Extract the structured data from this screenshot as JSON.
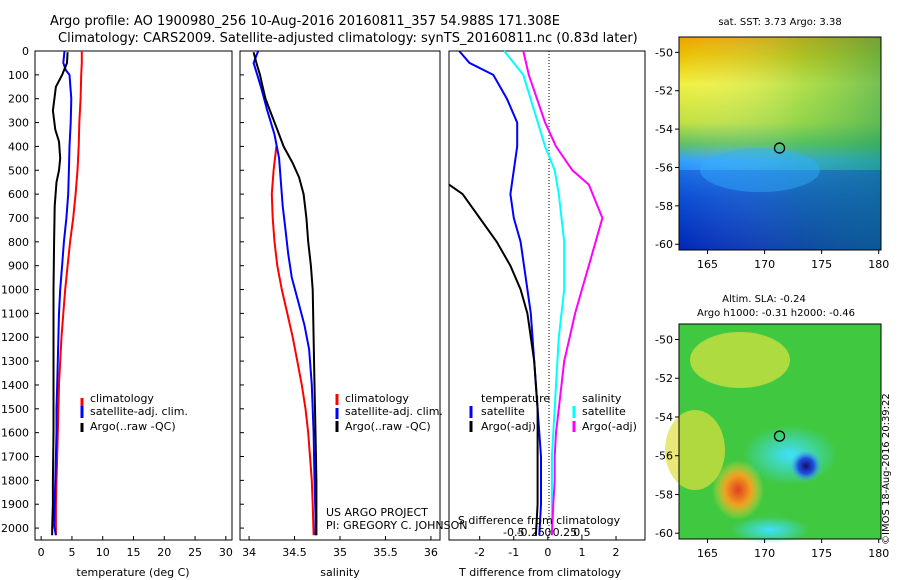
{
  "header": {
    "line1": "Argo profile: AO 1900980_256 10-Aug-2016 20160811_357 54.988S 171.308E",
    "line2": "Climatology: CARS2009. Satellite-adjusted climatology: synTS_20160811.nc (0.83d later)"
  },
  "colors": {
    "climatology": "#ff0000",
    "satellite": "#0000ff",
    "argo": "#000000",
    "sat_salinity": "#00ffff",
    "argo_adj_salinity": "#ff00ff"
  },
  "chart_data": [
    {
      "id": "temp",
      "type": "line",
      "xlabel": "temperature (deg C)",
      "ylabel": "",
      "xlim": [
        -1,
        31
      ],
      "ylim": [
        2050,
        0
      ],
      "xticks": [
        0,
        5,
        10,
        15,
        20,
        25,
        30
      ],
      "yticks": [
        0,
        100,
        200,
        300,
        400,
        500,
        600,
        700,
        800,
        900,
        1000,
        1100,
        1200,
        1300,
        1400,
        1500,
        1600,
        1700,
        1800,
        1900,
        2000
      ],
      "legend": {
        "position": "lower-right",
        "entries": [
          "climatology",
          "satellite-adj. clim.",
          "Argo(..raw -QC)"
        ]
      },
      "series": [
        {
          "name": "climatology",
          "color": "#ff0000",
          "points": [
            [
              6.6,
              0
            ],
            [
              6.6,
              50
            ],
            [
              6.5,
              100
            ],
            [
              6.4,
              200
            ],
            [
              6.2,
              300
            ],
            [
              6.1,
              400
            ],
            [
              5.9,
              500
            ],
            [
              5.6,
              600
            ],
            [
              5.2,
              700
            ],
            [
              4.7,
              800
            ],
            [
              4.3,
              900
            ],
            [
              3.9,
              1000
            ],
            [
              3.6,
              1100
            ],
            [
              3.3,
              1200
            ],
            [
              3.1,
              1300
            ],
            [
              2.9,
              1400
            ],
            [
              2.8,
              1500
            ],
            [
              2.7,
              1600
            ],
            [
              2.6,
              1700
            ],
            [
              2.5,
              1800
            ],
            [
              2.4,
              1900
            ],
            [
              2.4,
              2030
            ]
          ]
        },
        {
          "name": "satellite-adj. clim.",
          "color": "#0000ff",
          "points": [
            [
              3.8,
              0
            ],
            [
              3.6,
              50
            ],
            [
              4.0,
              80
            ],
            [
              4.6,
              100
            ],
            [
              4.9,
              200
            ],
            [
              4.8,
              300
            ],
            [
              4.6,
              400
            ],
            [
              4.5,
              500
            ],
            [
              4.4,
              600
            ],
            [
              4.1,
              700
            ],
            [
              3.7,
              800
            ],
            [
              3.4,
              900
            ],
            [
              3.1,
              1000
            ],
            [
              2.9,
              1100
            ],
            [
              2.8,
              1200
            ],
            [
              2.7,
              1300
            ],
            [
              2.6,
              1400
            ],
            [
              2.5,
              1500
            ],
            [
              2.5,
              1600
            ],
            [
              2.4,
              1700
            ],
            [
              2.3,
              1800
            ],
            [
              2.2,
              1900
            ],
            [
              2.1,
              1990
            ],
            [
              2.4,
              2030
            ]
          ]
        },
        {
          "name": "Argo(..raw -QC)",
          "color": "#000000",
          "points": [
            [
              4.3,
              5
            ],
            [
              4.2,
              50
            ],
            [
              3.4,
              100
            ],
            [
              2.4,
              150
            ],
            [
              1.9,
              250
            ],
            [
              2.3,
              330
            ],
            [
              2.9,
              380
            ],
            [
              3.1,
              450
            ],
            [
              2.9,
              500
            ],
            [
              2.5,
              550
            ],
            [
              2.2,
              650
            ],
            [
              2.1,
              800
            ],
            [
              2.0,
              1000
            ],
            [
              2.0,
              1300
            ],
            [
              2.0,
              1600
            ],
            [
              1.9,
              1800
            ],
            [
              1.9,
              1900
            ],
            [
              1.8,
              2000
            ],
            [
              1.8,
              2030
            ]
          ]
        }
      ]
    },
    {
      "id": "salt",
      "type": "line",
      "xlabel": "salinity",
      "ylabel": "",
      "xlim": [
        33.9,
        36.1
      ],
      "ylim": [
        2050,
        0
      ],
      "xticks": [
        34,
        34.5,
        35,
        35.5,
        36
      ],
      "xticklabels": [
        "34",
        "34.5",
        "35",
        "35.5",
        "36"
      ],
      "legend": {
        "position": "lower-right",
        "entries": [
          "climatology",
          "satellite-adj. clim.",
          "Argo(..raw -QC)"
        ]
      },
      "annotations": [
        "US ARGO PROJECT",
        "PI: GREGORY C. JOHNSON"
      ],
      "series": [
        {
          "name": "climatology",
          "color": "#ff0000",
          "points": [
            [
              34.3,
              400
            ],
            [
              34.27,
              500
            ],
            [
              34.25,
              600
            ],
            [
              34.26,
              700
            ],
            [
              34.28,
              800
            ],
            [
              34.31,
              900
            ],
            [
              34.36,
              1000
            ],
            [
              34.42,
              1100
            ],
            [
              34.48,
              1200
            ],
            [
              34.53,
              1300
            ],
            [
              34.58,
              1400
            ],
            [
              34.62,
              1500
            ],
            [
              34.65,
              1600
            ],
            [
              34.67,
              1700
            ],
            [
              34.69,
              1800
            ],
            [
              34.7,
              1900
            ],
            [
              34.71,
              2030
            ]
          ]
        },
        {
          "name": "satellite-adj. clim.",
          "color": "#0000ff",
          "points": [
            [
              34.1,
              0
            ],
            [
              34.05,
              50
            ],
            [
              34.09,
              100
            ],
            [
              34.13,
              150
            ],
            [
              34.2,
              250
            ],
            [
              34.28,
              350
            ],
            [
              34.33,
              450
            ],
            [
              34.35,
              550
            ],
            [
              34.37,
              650
            ],
            [
              34.4,
              750
            ],
            [
              34.43,
              850
            ],
            [
              34.47,
              950
            ],
            [
              34.54,
              1050
            ],
            [
              34.61,
              1150
            ],
            [
              34.66,
              1250
            ],
            [
              34.69,
              1400
            ],
            [
              34.71,
              1600
            ],
            [
              34.72,
              1800
            ],
            [
              34.73,
              1950
            ],
            [
              34.73,
              2030
            ]
          ]
        },
        {
          "name": "Argo(..raw -QC)",
          "color": "#000000",
          "points": [
            [
              34.05,
              5
            ],
            [
              34.08,
              50
            ],
            [
              34.12,
              100
            ],
            [
              34.15,
              150
            ],
            [
              34.18,
              200
            ],
            [
              34.23,
              250
            ],
            [
              34.3,
              320
            ],
            [
              34.38,
              400
            ],
            [
              34.48,
              470
            ],
            [
              34.55,
              530
            ],
            [
              34.6,
              600
            ],
            [
              34.63,
              700
            ],
            [
              34.65,
              800
            ],
            [
              34.68,
              900
            ],
            [
              34.7,
              1000
            ],
            [
              34.71,
              1200
            ],
            [
              34.72,
              1400
            ],
            [
              34.73,
              1600
            ],
            [
              34.74,
              1800
            ],
            [
              34.74,
              2000
            ],
            [
              34.74,
              2030
            ]
          ]
        }
      ]
    },
    {
      "id": "diff",
      "type": "line",
      "xlabel": "T difference from climatology",
      "xlabel2": "S difference from climatology",
      "xlim": [
        -2.9,
        2.85
      ],
      "ylim": [
        2050,
        0
      ],
      "xticks": [
        -2,
        -1,
        0,
        1,
        2
      ],
      "xticks_s": [
        -0.5,
        -0.25,
        0,
        0.25,
        0.5
      ],
      "xticklabels_s": [
        "-0.5",
        "-0.25",
        "0",
        "0.25",
        "0.5"
      ],
      "legend": {
        "position": "lower-center",
        "group_titles": [
          "temperature",
          "salinity"
        ],
        "entries": [
          "satellite",
          "Argo(-adj)",
          "satellite",
          "Argo(-adj)"
        ]
      },
      "series": [
        {
          "name": "T satellite",
          "color": "#0000ff",
          "points": [
            [
              -2.6,
              0
            ],
            [
              -2.3,
              50
            ],
            [
              -1.6,
              100
            ],
            [
              -1.2,
              200
            ],
            [
              -0.9,
              300
            ],
            [
              -0.9,
              400
            ],
            [
              -1.0,
              500
            ],
            [
              -1.1,
              600
            ],
            [
              -1.0,
              700
            ],
            [
              -0.8,
              800
            ],
            [
              -0.7,
              900
            ],
            [
              -0.6,
              1000
            ],
            [
              -0.5,
              1100
            ],
            [
              -0.45,
              1200
            ],
            [
              -0.4,
              1300
            ],
            [
              -0.35,
              1400
            ],
            [
              -0.3,
              1500
            ],
            [
              -0.25,
              1600
            ],
            [
              -0.2,
              1700
            ],
            [
              -0.2,
              1800
            ],
            [
              -0.2,
              1900
            ],
            [
              -0.25,
              2030
            ]
          ]
        },
        {
          "name": "T Argo(-adj)",
          "color": "#000000",
          "points": [
            [
              -2.9,
              560
            ],
            [
              -2.5,
              600
            ],
            [
              -2.0,
              700
            ],
            [
              -1.5,
              800
            ],
            [
              -1.1,
              900
            ],
            [
              -0.8,
              1000
            ],
            [
              -0.6,
              1100
            ],
            [
              -0.5,
              1200
            ],
            [
              -0.4,
              1300
            ],
            [
              -0.35,
              1400
            ],
            [
              -0.3,
              1500
            ],
            [
              -0.3,
              1600
            ],
            [
              -0.3,
              1700
            ],
            [
              -0.3,
              1800
            ],
            [
              -0.3,
              1900
            ],
            [
              -0.35,
              2030
            ]
          ]
        },
        {
          "name": "S satellite",
          "color": "#00ffff",
          "points": [
            [
              -0.32,
              0
            ],
            [
              -0.18,
              100
            ],
            [
              -0.02,
              400
            ],
            [
              0.05,
              500
            ],
            [
              0.08,
              600
            ],
            [
              0.1,
              700
            ],
            [
              0.12,
              800
            ],
            [
              0.12,
              900
            ],
            [
              0.12,
              1000
            ],
            [
              0.1,
              1100
            ],
            [
              0.08,
              1200
            ],
            [
              0.07,
              1300
            ],
            [
              0.06,
              1400
            ],
            [
              0.05,
              1500
            ],
            [
              0.04,
              1600
            ],
            [
              0.03,
              1700
            ],
            [
              0.03,
              1800
            ],
            [
              0.03,
              1900
            ],
            [
              0.03,
              2030
            ]
          ]
        },
        {
          "name": "S Argo(-adj)",
          "color": "#ff00ff",
          "points": [
            [
              -0.18,
              0
            ],
            [
              -0.14,
              100
            ],
            [
              -0.02,
              300
            ],
            [
              0.06,
              400
            ],
            [
              0.18,
              500
            ],
            [
              0.3,
              560
            ],
            [
              0.4,
              700
            ],
            [
              0.35,
              800
            ],
            [
              0.3,
              900
            ],
            [
              0.25,
              1000
            ],
            [
              0.2,
              1100
            ],
            [
              0.16,
              1200
            ],
            [
              0.12,
              1300
            ],
            [
              0.1,
              1400
            ],
            [
              0.08,
              1500
            ],
            [
              0.06,
              1600
            ],
            [
              0.05,
              1700
            ],
            [
              0.05,
              1800
            ],
            [
              0.04,
              1900
            ],
            [
              0.03,
              2030
            ]
          ]
        }
      ]
    },
    {
      "id": "sst_map",
      "type": "heatmap",
      "title": "sat. SST: 3.73 Argo: 3.38",
      "xlim": [
        162.5,
        180.2
      ],
      "ylim": [
        -60.3,
        -49.2
      ],
      "xticks": [
        165,
        170,
        175,
        180
      ],
      "yticks": [
        -50,
        -52,
        -54,
        -56,
        -58,
        -60
      ],
      "marker": {
        "lon": 171.308,
        "lat": -54.988
      }
    },
    {
      "id": "sla_map",
      "type": "heatmap",
      "title": "Altim. SLA: -0.24",
      "subtitle": "Argo h1000: -0.31 h2000: -0.46",
      "xlim": [
        162.5,
        180.2
      ],
      "ylim": [
        -60.3,
        -49.2
      ],
      "xticks": [
        165,
        170,
        175,
        180
      ],
      "yticks": [
        -50,
        -52,
        -54,
        -56,
        -58,
        -60
      ],
      "marker": {
        "lon": 171.308,
        "lat": -54.988
      }
    }
  ],
  "watermark": "©IMOS 18-Aug-2016 20:39:22"
}
